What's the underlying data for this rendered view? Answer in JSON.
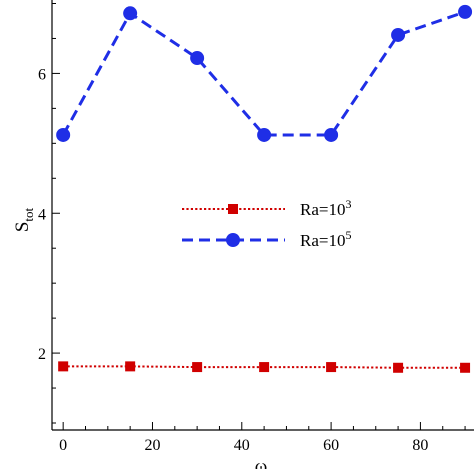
{
  "chart_data": {
    "type": "line",
    "xlabel": "ω",
    "ylabel": {
      "main": "S",
      "sub": "tot"
    },
    "xlim": [
      -2.5,
      92
    ],
    "ylim": [
      0.9,
      7.05
    ],
    "xticks": [
      0,
      20,
      40,
      60,
      80
    ],
    "xtick_labels": [
      "0",
      "20",
      "40",
      "60",
      "80"
    ],
    "yticks": [
      2,
      4,
      6
    ],
    "ytick_labels": [
      "2",
      "4",
      "6"
    ],
    "x_minor_step": 5,
    "y_minor_step": 0.5,
    "grid": false,
    "legend_position": "center-right",
    "series": [
      {
        "name": "Ra=10",
        "name_sup": "3",
        "color": "#d00000",
        "line_style": "dotted",
        "marker": "square",
        "x": [
          0,
          15,
          30,
          45,
          60,
          75,
          90
        ],
        "values": [
          1.81,
          1.81,
          1.8,
          1.8,
          1.8,
          1.79,
          1.79
        ]
      },
      {
        "name": "Ra=10",
        "name_sup": "5",
        "color": "#1f2ee6",
        "line_style": "dashed",
        "marker": "circle",
        "x": [
          0,
          15,
          30,
          45,
          60,
          75,
          90
        ],
        "values": [
          5.12,
          6.86,
          6.22,
          5.12,
          5.12,
          6.55,
          6.88
        ]
      }
    ]
  }
}
